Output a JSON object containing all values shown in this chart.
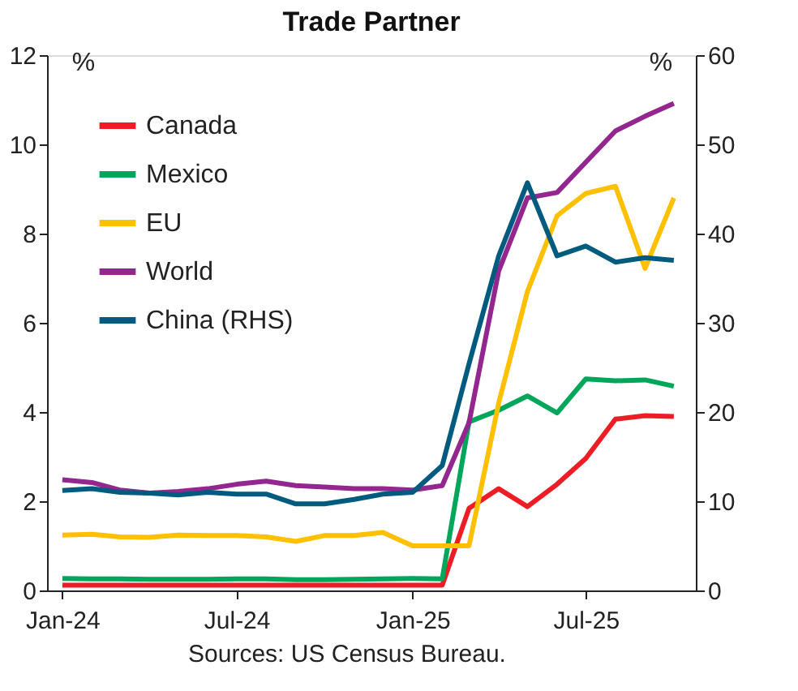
{
  "chart_data": {
    "type": "line",
    "title": "Trade Partner",
    "ylabel": "%",
    "y2label": "%",
    "x": [
      "2024-01",
      "2024-02",
      "2024-03",
      "2024-04",
      "2024-05",
      "2024-06",
      "2024-07",
      "2024-08",
      "2024-09",
      "2024-10",
      "2024-11",
      "2024-12",
      "2025-01",
      "2025-02",
      "2025-03",
      "2025-04",
      "2025-05",
      "2025-06",
      "2025-07",
      "2025-08",
      "2025-09",
      "2025-10"
    ],
    "xlim": [
      "2023-12-16",
      "2025-10-24"
    ],
    "xticks": [
      {
        "value": "2024-01",
        "label": "Jan-24"
      },
      {
        "value": "2024-07",
        "label": "Jul-24"
      },
      {
        "value": "2025-01",
        "label": "Jan-25"
      },
      {
        "value": "2025-07",
        "label": "Jul-25"
      }
    ],
    "ylim": [
      0,
      12
    ],
    "yticks": [
      0,
      2,
      4,
      6,
      8,
      10,
      12
    ],
    "y2lim": [
      0,
      60
    ],
    "y2ticks": [
      0,
      10,
      20,
      30,
      40,
      50,
      60
    ],
    "series": [
      {
        "name": "Canada",
        "color": "#ee1c25",
        "values": [
          0.12,
          0.12,
          0.12,
          0.12,
          0.12,
          0.12,
          0.12,
          0.12,
          0.12,
          0.12,
          0.12,
          0.12,
          0.12,
          0.12,
          1.84,
          2.28,
          1.88,
          2.38,
          2.96,
          3.84,
          3.92,
          3.9
        ]
      },
      {
        "name": "Mexico",
        "color": "#00a65a",
        "values": [
          0.27,
          0.26,
          0.26,
          0.25,
          0.25,
          0.25,
          0.26,
          0.26,
          0.24,
          0.24,
          0.25,
          0.26,
          0.27,
          0.26,
          3.78,
          4.04,
          4.36,
          3.98,
          4.74,
          4.7,
          4.72,
          4.58
        ]
      },
      {
        "name": "EU",
        "color": "#ffc000",
        "values": [
          1.24,
          1.26,
          1.2,
          1.19,
          1.24,
          1.23,
          1.23,
          1.2,
          1.1,
          1.23,
          1.23,
          1.3,
          1.0,
          1.0,
          1.0,
          4.2,
          6.7,
          8.4,
          8.9,
          9.06,
          7.22,
          8.8
        ]
      },
      {
        "name": "World",
        "color": "#93278f",
        "values": [
          2.48,
          2.42,
          2.25,
          2.18,
          2.22,
          2.28,
          2.38,
          2.45,
          2.35,
          2.32,
          2.28,
          2.28,
          2.25,
          2.35,
          3.76,
          7.16,
          8.8,
          8.92,
          9.6,
          10.3,
          10.63,
          10.92
        ]
      },
      {
        "name": "China (RHS)",
        "color": "#005b7f",
        "axis": "y2",
        "values": [
          11.2,
          11.4,
          11.0,
          10.9,
          10.7,
          11.0,
          10.8,
          10.8,
          9.7,
          9.7,
          10.2,
          10.8,
          11.0,
          14.0,
          25.4,
          37.5,
          45.7,
          37.5,
          38.6,
          36.8,
          37.3,
          37.0
        ]
      }
    ],
    "grid": false,
    "legend": "top left",
    "line_style": "solid",
    "marker": "none",
    "annotations": [
      "Sources: US Census Bureau."
    ]
  }
}
